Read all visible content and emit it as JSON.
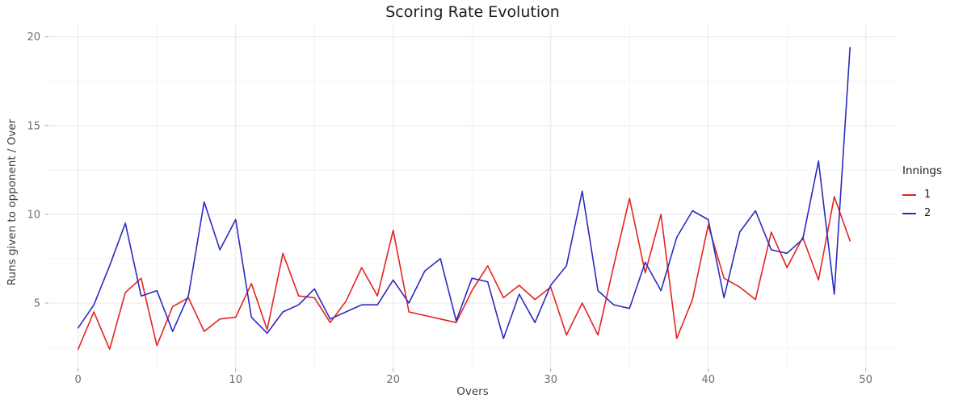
{
  "title": "Scoring Rate Evolution",
  "axes": {
    "x": {
      "label": "Overs",
      "ticks": [
        0,
        10,
        20,
        30,
        40,
        50
      ],
      "minor_ticks": [
        5,
        15,
        25,
        35,
        45
      ]
    },
    "y": {
      "label": "Runs given to opponent / Over",
      "ticks": [
        5,
        10,
        15,
        20
      ],
      "minor_ticks": [
        2.5,
        7.5,
        12.5,
        17.5
      ]
    }
  },
  "legend": {
    "title": "Innings",
    "items": [
      {
        "label": "1",
        "color": "#e42420"
      },
      {
        "label": "2",
        "color": "#2b2bc0"
      }
    ]
  },
  "chart_data": {
    "type": "line",
    "title": "Scoring Rate Evolution",
    "xlabel": "Overs",
    "ylabel": "Runs given to opponent / Over",
    "xlim": [
      -1.9,
      52
    ],
    "ylim": [
      1.3,
      20.7
    ],
    "grid": true,
    "legend_position": "right",
    "x": [
      0,
      1,
      2,
      3,
      4,
      5,
      6,
      7,
      8,
      9,
      10,
      11,
      12,
      13,
      14,
      15,
      16,
      17,
      18,
      19,
      20,
      21,
      22,
      23,
      24,
      25,
      26,
      27,
      28,
      29,
      30,
      31,
      32,
      33,
      34,
      35,
      36,
      37,
      38,
      39,
      40,
      41,
      42,
      43,
      44,
      45,
      46,
      47,
      48,
      49
    ],
    "series": [
      {
        "name": "1",
        "color": "#e42420",
        "values": [
          2.4,
          4.5,
          2.4,
          5.6,
          6.4,
          2.6,
          4.8,
          5.3,
          3.4,
          4.1,
          4.2,
          6.1,
          3.5,
          7.8,
          5.4,
          5.3,
          3.9,
          5.1,
          7.0,
          5.4,
          9.1,
          4.5,
          4.3,
          4.1,
          3.9,
          5.7,
          7.1,
          5.3,
          6.0,
          5.2,
          5.9,
          3.2,
          5.0,
          3.2,
          7.1,
          10.9,
          6.7,
          10.0,
          3.0,
          5.2,
          9.4,
          6.4,
          5.9,
          5.2,
          9.0,
          7.0,
          8.7,
          6.3,
          11.0,
          8.5
        ]
      },
      {
        "name": "2",
        "color": "#2b2bc0",
        "values": [
          3.6,
          4.9,
          7.1,
          9.5,
          5.4,
          5.7,
          3.4,
          5.4,
          10.7,
          8.0,
          9.7,
          4.2,
          3.3,
          4.5,
          4.9,
          5.8,
          4.1,
          4.5,
          4.9,
          4.9,
          6.3,
          5.0,
          6.8,
          7.5,
          4.0,
          6.4,
          6.2,
          3.0,
          5.5,
          3.9,
          6.0,
          7.1,
          11.3,
          5.7,
          4.9,
          4.7,
          7.3,
          5.7,
          8.7,
          10.2,
          9.7,
          5.3,
          9.0,
          10.2,
          8.0,
          7.8,
          8.6,
          13.0,
          5.5,
          19.4
        ]
      }
    ]
  }
}
